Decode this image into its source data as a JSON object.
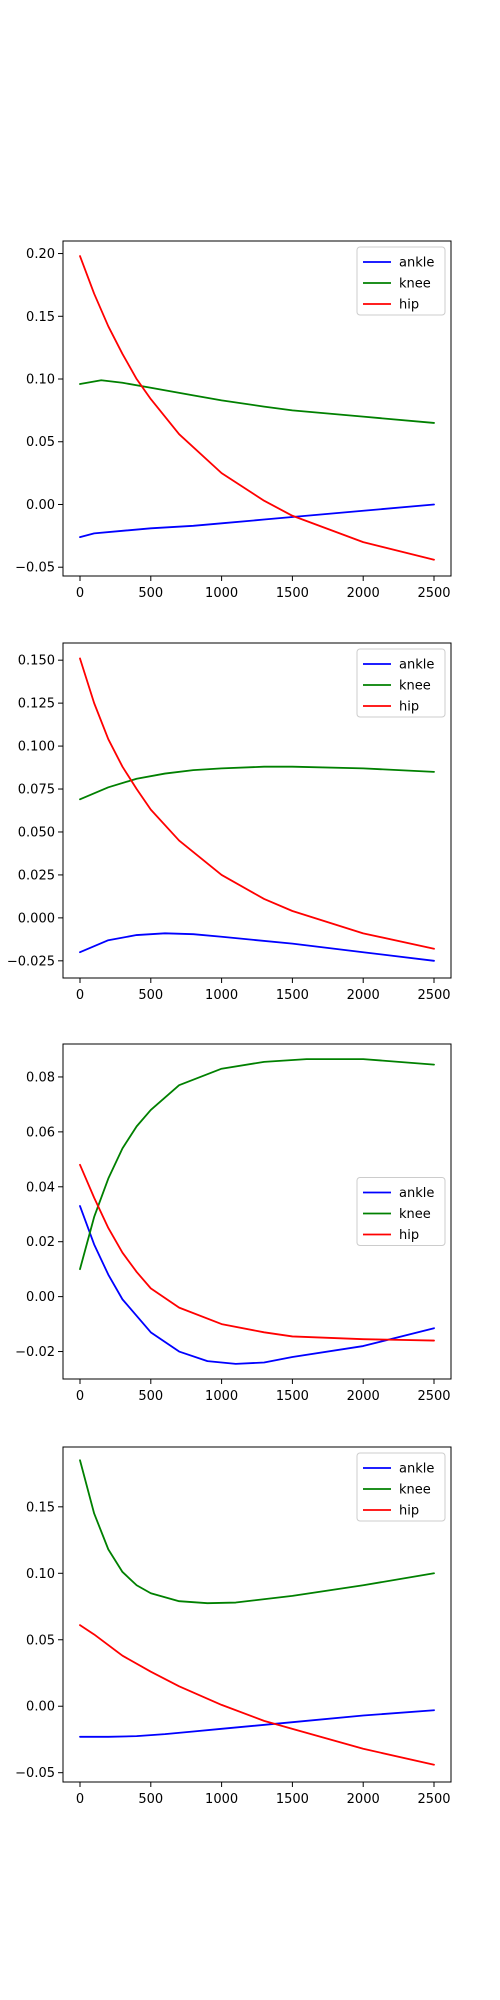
{
  "chart_data": [
    {
      "type": "line",
      "xlim": [
        -120,
        2620
      ],
      "ylim": [
        -0.057,
        0.21
      ],
      "xticks": [
        0,
        500,
        1000,
        1500,
        2000,
        2500
      ],
      "xtick_labels": [
        "0",
        "500",
        "1000",
        "1500",
        "2000",
        "2500"
      ],
      "yticks": [
        -0.05,
        0.0,
        0.05,
        0.1,
        0.15,
        0.2
      ],
      "ytick_labels": [
        "−0.05",
        "0.00",
        "0.05",
        "0.10",
        "0.15",
        "0.20"
      ],
      "grid": false,
      "legend_position": "upper right",
      "series": [
        {
          "name": "ankle",
          "color": "#0000ff",
          "x": [
            0,
            100,
            300,
            500,
            800,
            1000,
            1300,
            1500,
            2000,
            2500
          ],
          "y": [
            -0.026,
            -0.023,
            -0.021,
            -0.019,
            -0.017,
            -0.015,
            -0.012,
            -0.01,
            -0.005,
            0.0
          ]
        },
        {
          "name": "knee",
          "color": "#008000",
          "x": [
            0,
            150,
            300,
            500,
            800,
            1000,
            1300,
            1500,
            2000,
            2500
          ],
          "y": [
            0.096,
            0.099,
            0.097,
            0.093,
            0.087,
            0.083,
            0.078,
            0.075,
            0.07,
            0.065
          ]
        },
        {
          "name": "hip",
          "color": "#ff0000",
          "x": [
            0,
            100,
            200,
            300,
            400,
            500,
            700,
            1000,
            1300,
            1500,
            2000,
            2500
          ],
          "y": [
            0.198,
            0.168,
            0.142,
            0.12,
            0.1,
            0.084,
            0.056,
            0.025,
            0.003,
            -0.009,
            -0.03,
            -0.044
          ]
        }
      ]
    },
    {
      "type": "line",
      "xlim": [
        -120,
        2620
      ],
      "ylim": [
        -0.035,
        0.16
      ],
      "xticks": [
        0,
        500,
        1000,
        1500,
        2000,
        2500
      ],
      "xtick_labels": [
        "0",
        "500",
        "1000",
        "1500",
        "2000",
        "2500"
      ],
      "yticks": [
        -0.025,
        0.0,
        0.025,
        0.05,
        0.075,
        0.1,
        0.125,
        0.15
      ],
      "ytick_labels": [
        "−0.025",
        "0.000",
        "0.025",
        "0.050",
        "0.075",
        "0.100",
        "0.125",
        "0.150"
      ],
      "grid": false,
      "legend_position": "upper right",
      "series": [
        {
          "name": "ankle",
          "color": "#0000ff",
          "x": [
            0,
            200,
            400,
            600,
            800,
            1000,
            1500,
            2000,
            2500
          ],
          "y": [
            -0.02,
            -0.013,
            -0.01,
            -0.009,
            -0.0095,
            -0.011,
            -0.015,
            -0.02,
            -0.025
          ]
        },
        {
          "name": "knee",
          "color": "#008000",
          "x": [
            0,
            200,
            400,
            600,
            800,
            1000,
            1300,
            1500,
            2000,
            2500
          ],
          "y": [
            0.069,
            0.076,
            0.081,
            0.084,
            0.086,
            0.087,
            0.088,
            0.088,
            0.087,
            0.085
          ]
        },
        {
          "name": "hip",
          "color": "#ff0000",
          "x": [
            0,
            100,
            200,
            300,
            400,
            500,
            700,
            1000,
            1300,
            1500,
            2000,
            2500
          ],
          "y": [
            0.151,
            0.125,
            0.104,
            0.088,
            0.075,
            0.063,
            0.045,
            0.025,
            0.011,
            0.004,
            -0.009,
            -0.018
          ]
        }
      ]
    },
    {
      "type": "line",
      "xlim": [
        -120,
        2620
      ],
      "ylim": [
        -0.03,
        0.092
      ],
      "xticks": [
        0,
        500,
        1000,
        1500,
        2000,
        2500
      ],
      "xtick_labels": [
        "0",
        "500",
        "1000",
        "1500",
        "2000",
        "2500"
      ],
      "yticks": [
        -0.02,
        0.0,
        0.02,
        0.04,
        0.06,
        0.08
      ],
      "ytick_labels": [
        "−0.02",
        "0.00",
        "0.02",
        "0.04",
        "0.06",
        "0.08"
      ],
      "grid": false,
      "legend_position": "center right",
      "series": [
        {
          "name": "ankle",
          "color": "#0000ff",
          "x": [
            0,
            100,
            200,
            300,
            500,
            700,
            900,
            1100,
            1300,
            1500,
            2000,
            2500
          ],
          "y": [
            0.033,
            0.019,
            0.008,
            -0.001,
            -0.013,
            -0.02,
            -0.0235,
            -0.0245,
            -0.024,
            -0.022,
            -0.018,
            -0.0115
          ]
        },
        {
          "name": "knee",
          "color": "#008000",
          "x": [
            0,
            100,
            200,
            300,
            400,
            500,
            700,
            1000,
            1300,
            1600,
            2000,
            2500
          ],
          "y": [
            0.01,
            0.029,
            0.043,
            0.054,
            0.062,
            0.068,
            0.077,
            0.083,
            0.0855,
            0.0865,
            0.0865,
            0.0845
          ]
        },
        {
          "name": "hip",
          "color": "#ff0000",
          "x": [
            0,
            100,
            200,
            300,
            400,
            500,
            700,
            1000,
            1300,
            1500,
            2000,
            2500
          ],
          "y": [
            0.048,
            0.036,
            0.025,
            0.016,
            0.009,
            0.003,
            -0.004,
            -0.01,
            -0.013,
            -0.0145,
            -0.0155,
            -0.016
          ]
        }
      ]
    },
    {
      "type": "line",
      "xlim": [
        -120,
        2620
      ],
      "ylim": [
        -0.057,
        0.195
      ],
      "xticks": [
        0,
        500,
        1000,
        1500,
        2000,
        2500
      ],
      "xtick_labels": [
        "0",
        "500",
        "1000",
        "1500",
        "2000",
        "2500"
      ],
      "yticks": [
        -0.05,
        0.0,
        0.05,
        0.1,
        0.15
      ],
      "ytick_labels": [
        "−0.05",
        "0.00",
        "0.05",
        "0.10",
        "0.15"
      ],
      "grid": false,
      "legend_position": "upper right",
      "series": [
        {
          "name": "ankle",
          "color": "#0000ff",
          "x": [
            0,
            200,
            400,
            600,
            800,
            1000,
            1500,
            2000,
            2500
          ],
          "y": [
            -0.023,
            -0.023,
            -0.0225,
            -0.021,
            -0.019,
            -0.017,
            -0.012,
            -0.007,
            -0.003
          ]
        },
        {
          "name": "knee",
          "color": "#008000",
          "x": [
            0,
            100,
            200,
            300,
            400,
            500,
            700,
            900,
            1100,
            1500,
            2000,
            2500
          ],
          "y": [
            0.185,
            0.145,
            0.118,
            0.101,
            0.091,
            0.085,
            0.079,
            0.0775,
            0.078,
            0.083,
            0.091,
            0.1
          ]
        },
        {
          "name": "hip",
          "color": "#ff0000",
          "x": [
            0,
            100,
            200,
            300,
            500,
            700,
            1000,
            1300,
            1500,
            2000,
            2500
          ],
          "y": [
            0.061,
            0.054,
            0.046,
            0.038,
            0.026,
            0.015,
            0.001,
            -0.011,
            -0.017,
            -0.032,
            -0.044
          ]
        }
      ]
    }
  ]
}
